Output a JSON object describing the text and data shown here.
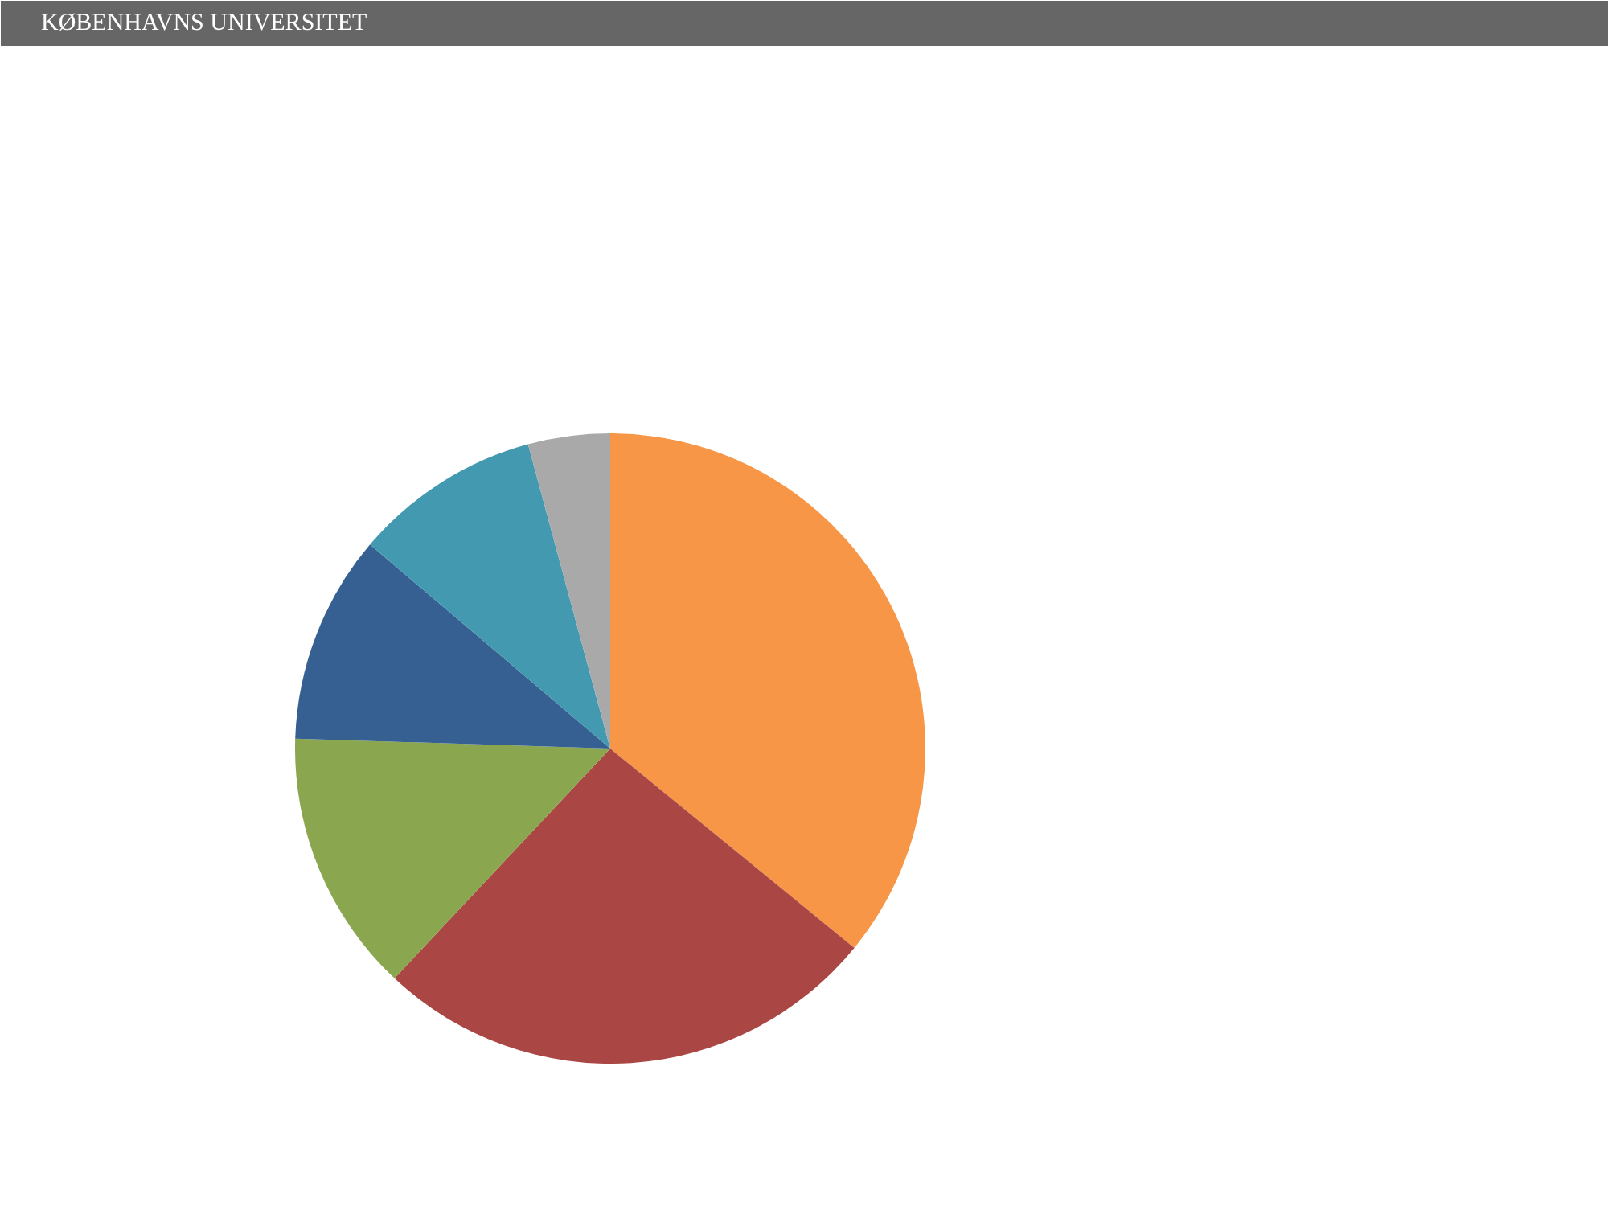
{
  "chart_data": {
    "type": "pie",
    "categories": [
      null,
      null,
      null,
      null,
      null,
      null
    ],
    "values": [
      35.9,
      26.1,
      13.5,
      10.7,
      9.6,
      4.2
    ],
    "colors": [
      "#f79646",
      "#aa4644",
      "#8aa64e",
      "#366092",
      "#4299b0",
      "#a9a9a9"
    ],
    "annotations": [
      "KØBENHAVNS UNIVERSITET"
    ]
  }
}
